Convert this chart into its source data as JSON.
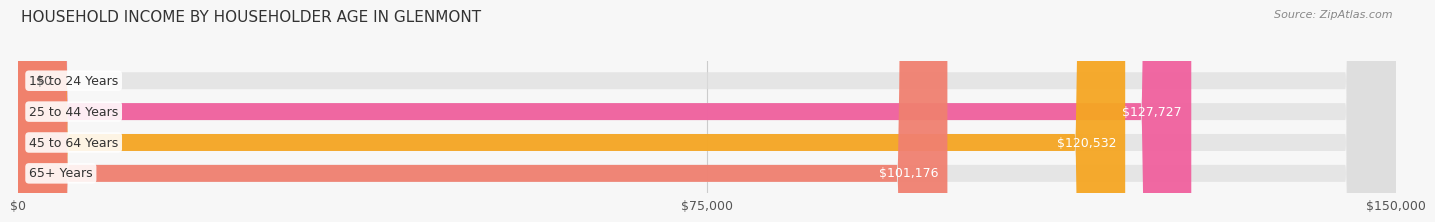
{
  "title": "HOUSEHOLD INCOME BY HOUSEHOLDER AGE IN GLENMONT",
  "source": "Source: ZipAtlas.com",
  "categories": [
    "15 to 24 Years",
    "25 to 44 Years",
    "45 to 64 Years",
    "65+ Years"
  ],
  "values": [
    0,
    127727,
    120532,
    101176
  ],
  "bar_colors": [
    "#a8a8d8",
    "#f0609e",
    "#f5a623",
    "#f08070"
  ],
  "value_labels": [
    "$0",
    "$127,727",
    "$120,532",
    "$101,176"
  ],
  "xlim": [
    0,
    150000
  ],
  "xticks": [
    0,
    75000,
    150000
  ],
  "xtick_labels": [
    "$0",
    "$75,000",
    "$150,000"
  ],
  "background_color": "#f7f7f7",
  "title_fontsize": 11,
  "label_fontsize": 9,
  "tick_fontsize": 9,
  "source_fontsize": 8
}
